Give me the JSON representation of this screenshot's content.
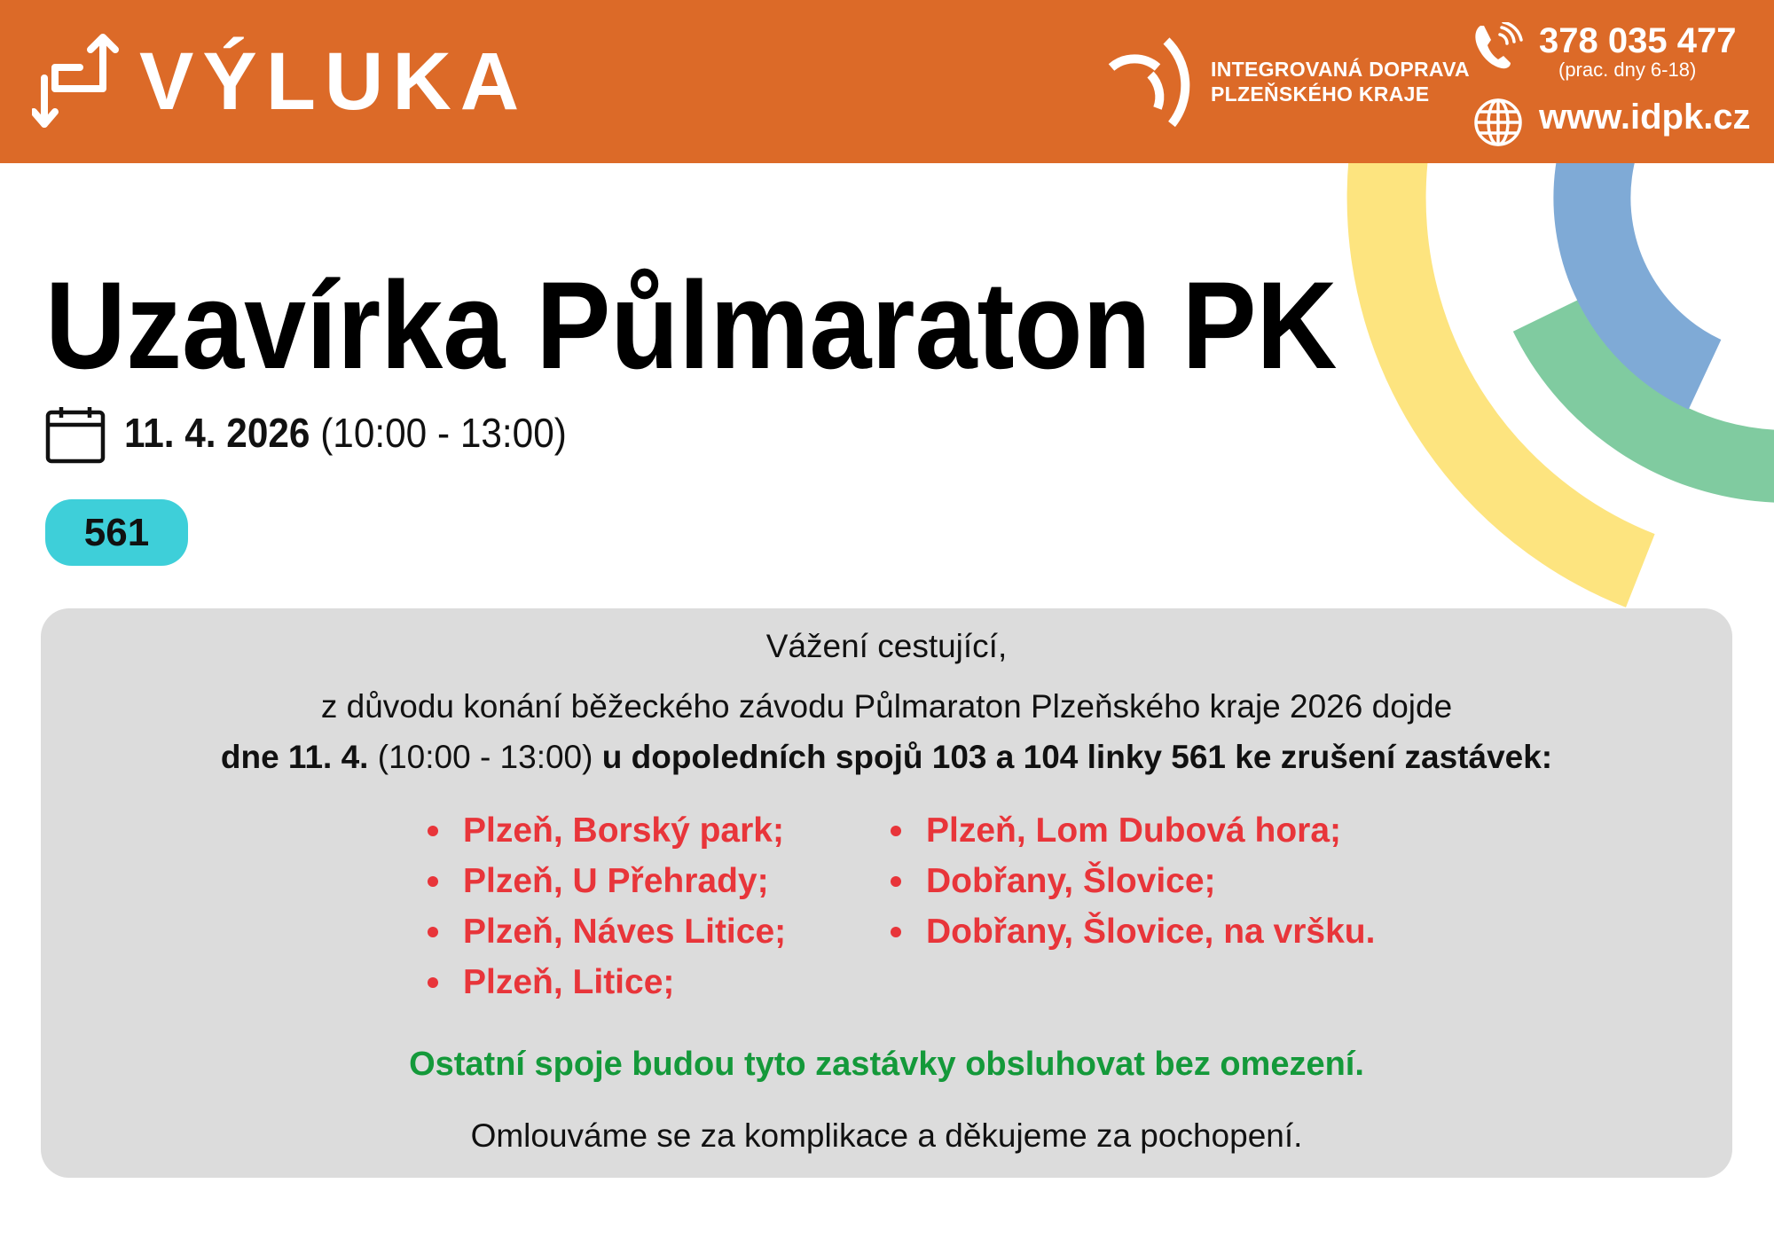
{
  "header": {
    "brand": "VÝLUKA",
    "brand_icon": "detour-arrows-icon",
    "org_line1": "INTEGROVANÁ DOPRAVA",
    "org_line2": "PLZEŇSKÉHO KRAJE",
    "phone": "378 035 477",
    "phone_note": "(prac. dny 6-18)",
    "web": "www.idpk.cz",
    "color": "#dc6a28"
  },
  "notice": {
    "title": "Uzavírka Půlmaraton PK",
    "date": "11. 4. 2026",
    "time": "(10:00 - 13:00)",
    "line_badge": "561",
    "badge_color": "#3ecfd9"
  },
  "body": {
    "greeting": "Vážení cestující,",
    "intro": "z důvodu konání běžeckého závodu Půlmaraton Plzeňského kraje 2026 dojde",
    "detail_bold1": "dne 11. 4.",
    "detail_time": "(10:00 - 13:00)",
    "detail_bold2": "u dopoledních spojů 103 a 104 linky 561 ke zrušení zastávek:",
    "stops_left": [
      "Plzeň, Borský park;",
      "Plzeň, U Přehrady;",
      "Plzeň, Náves Litice;",
      "Plzeň, Litice;"
    ],
    "stops_right": [
      "Plzeň, Lom Dubová hora;",
      "Dobřany, Šlovice;",
      "Dobřany, Šlovice, na vršku."
    ],
    "note_green": "Ostatní spoje budou tyto zastávky obsluhovat bez omezení.",
    "closing": "Omlouváme se za komplikace a děkujeme za pochopení.",
    "stop_color": "#e8353a",
    "note_color": "#14993a"
  },
  "decor_colors": {
    "yellow": "#fde47f",
    "green": "#80cba0",
    "blue": "#7faad6"
  }
}
